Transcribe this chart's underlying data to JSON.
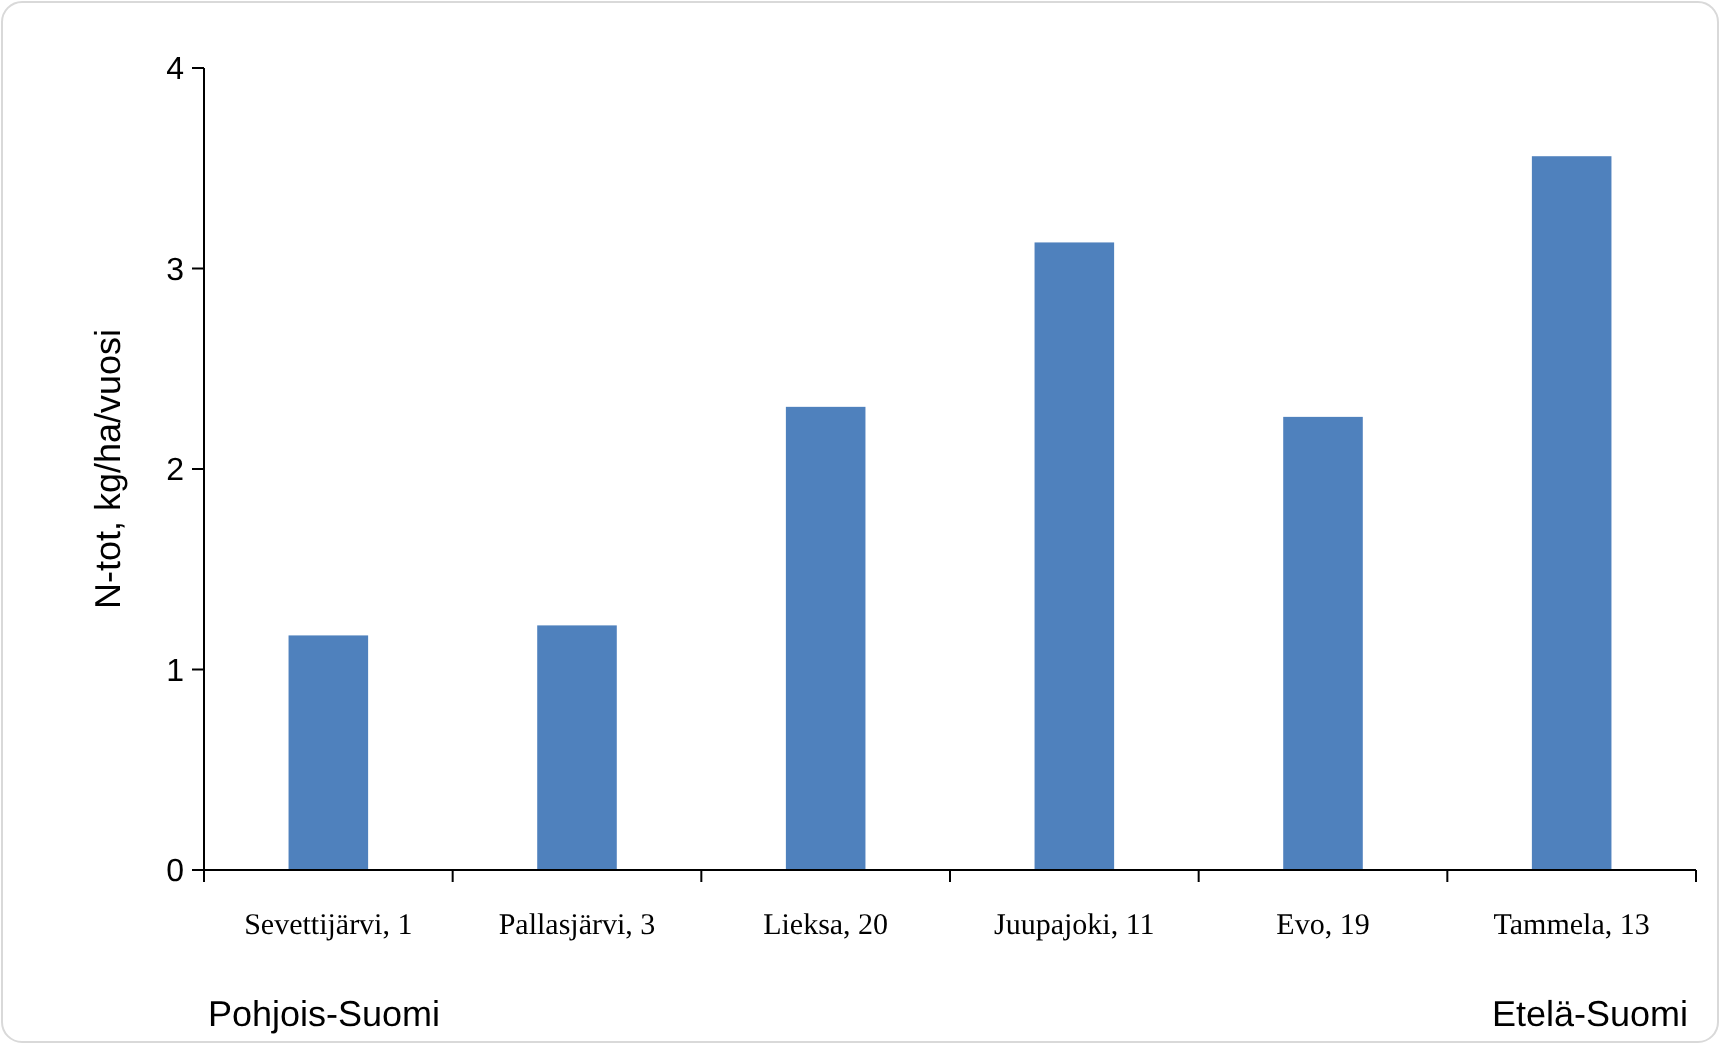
{
  "chart_data": {
    "type": "bar",
    "ylabel": "N-tot, kg/ha/vuosi",
    "categories": [
      "Sevettijärvi, 1",
      "Pallasjärvi, 3",
      "Lieksa, 20",
      "Juupajoki, 11",
      "Evo, 19",
      "Tammela, 13"
    ],
    "values": [
      1.17,
      1.22,
      2.31,
      3.13,
      2.26,
      3.56
    ],
    "color": "#4f81bd",
    "ylim": [
      0,
      4
    ],
    "yticks": [
      0,
      1,
      2,
      3,
      4
    ],
    "grid": false,
    "annotations": [
      "Pohjois-Suomi",
      "Etelä-Suomi"
    ]
  }
}
